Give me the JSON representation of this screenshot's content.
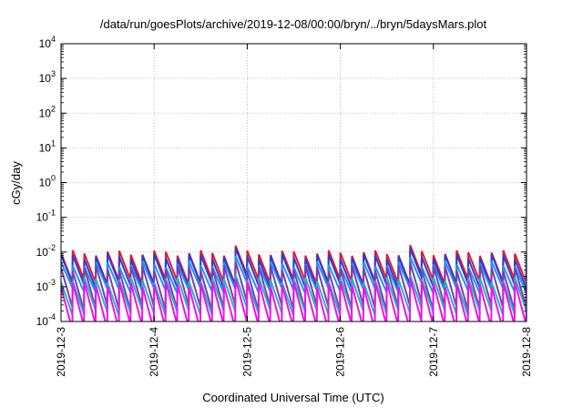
{
  "chart_data": {
    "type": "line",
    "title": "/data/run/goesPlots/archive/2019-12-08/00:00/bryn/../bryn/5daysMars.plot",
    "xlabel": "Coordinated Universal Time (UTC)",
    "ylabel": "cGy/day",
    "y_scale": "log",
    "ylim": [
      0.0001,
      10000
    ],
    "xlim": [
      "2019-12-03",
      "2019-12-08"
    ],
    "x_tick_labels": [
      "2019-12-3",
      "2019-12-4",
      "2019-12-5",
      "2019-12-6",
      "2019-12-7",
      "2019-12-8"
    ],
    "y_ticks": [
      {
        "base": "10",
        "exp": "-4"
      },
      {
        "base": "10",
        "exp": "-3"
      },
      {
        "base": "10",
        "exp": "-2"
      },
      {
        "base": "10",
        "exp": "-1"
      },
      {
        "base": "10",
        "exp": "0"
      },
      {
        "base": "10",
        "exp": "1"
      },
      {
        "base": "10",
        "exp": "2"
      },
      {
        "base": "10",
        "exp": "3"
      },
      {
        "base": "10",
        "exp": "4"
      }
    ],
    "grid": true,
    "legend": "none",
    "sawtooth_cycles_per_day": 8,
    "series": [
      {
        "color": "#e8182a",
        "peak": 0.0095,
        "trough": 0.0014
      },
      {
        "color": "#2b3cd6",
        "peak": 0.0075,
        "trough": 0.0011
      },
      {
        "color": "#1e90ff",
        "peak": 0.0045,
        "trough": 0.0008
      },
      {
        "color": "#7a3fb0",
        "peak": 0.0035,
        "trough": 0.00025
      },
      {
        "color": "#1fb8b8",
        "peak": 0.0016,
        "trough": 0.00018
      },
      {
        "color": "#ee11ee",
        "peak": 0.0012,
        "trough": 7e-05
      }
    ]
  }
}
